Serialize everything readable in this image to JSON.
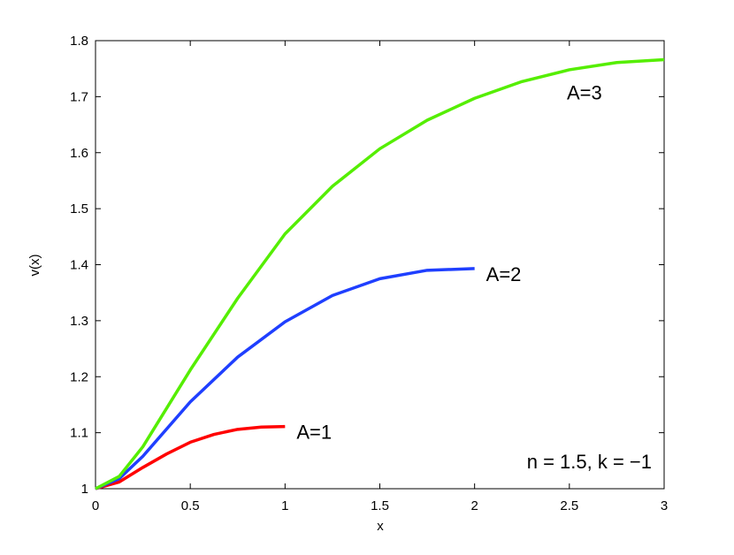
{
  "chart_data": {
    "type": "line",
    "xlabel": "x",
    "ylabel": "v(x)",
    "annotation": "n = 1.5, k = −1",
    "xlim": [
      0,
      3
    ],
    "ylim": [
      1,
      1.8
    ],
    "xticks": [
      0,
      0.5,
      1,
      1.5,
      2,
      2.5,
      3
    ],
    "yticks": [
      1,
      1.1,
      1.2,
      1.3,
      1.4,
      1.5,
      1.6,
      1.7,
      1.8
    ],
    "series": [
      {
        "name": "A=1",
        "color": "#ff0000",
        "x": [
          0,
          0.125,
          0.25,
          0.375,
          0.5,
          0.625,
          0.75,
          0.875,
          1
        ],
        "values": [
          1,
          1.012,
          1.038,
          1.062,
          1.083,
          1.097,
          1.106,
          1.11,
          1.111
        ]
      },
      {
        "name": "A=2",
        "color": "#1f3fff",
        "x": [
          0,
          0.125,
          0.25,
          0.5,
          0.75,
          1,
          1.25,
          1.5,
          1.75,
          2
        ],
        "values": [
          1,
          1.018,
          1.058,
          1.155,
          1.235,
          1.298,
          1.345,
          1.375,
          1.39,
          1.393
        ]
      },
      {
        "name": "A=3",
        "color": "#55ee00",
        "x": [
          0,
          0.125,
          0.25,
          0.5,
          0.75,
          1,
          1.25,
          1.5,
          1.75,
          2,
          2.25,
          2.5,
          2.75,
          3
        ],
        "values": [
          1,
          1.022,
          1.075,
          1.212,
          1.34,
          1.455,
          1.54,
          1.607,
          1.658,
          1.697,
          1.727,
          1.748,
          1.761,
          1.766
        ]
      }
    ]
  }
}
